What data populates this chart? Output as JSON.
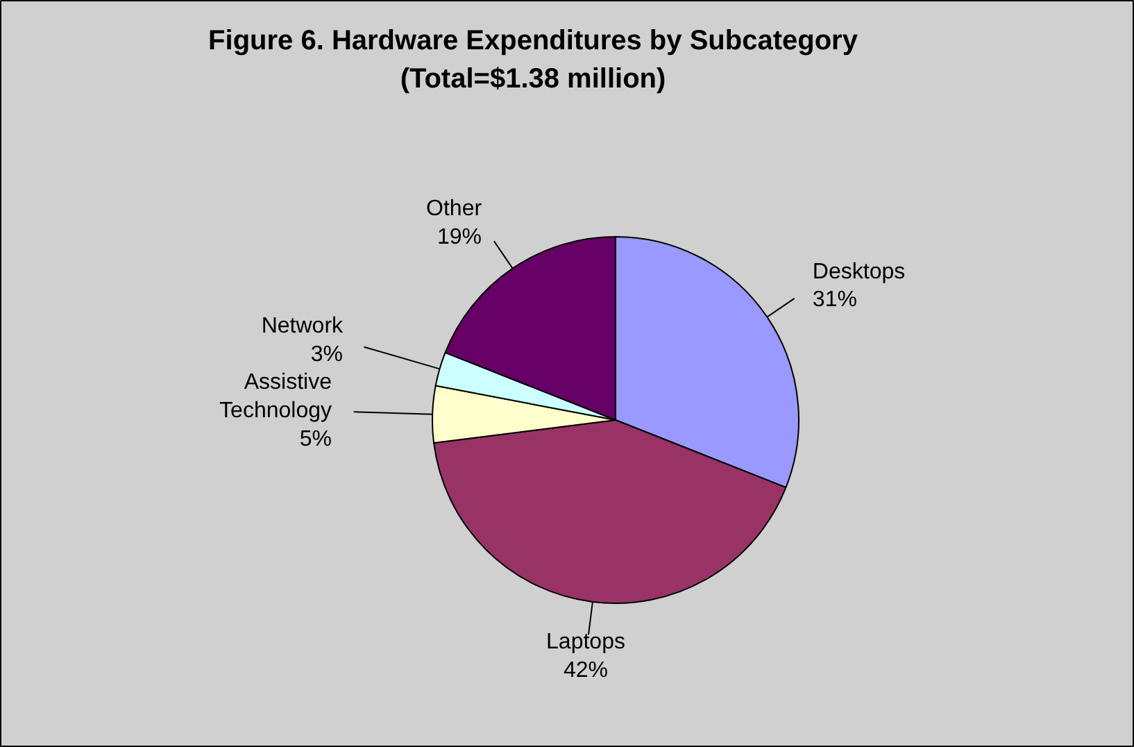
{
  "chart_data": {
    "type": "pie",
    "title": "Figure 6. Hardware Expenditures by Subcategory\n(Total=$1.38 million)",
    "categories": [
      "Desktops",
      "Laptops",
      "Assistive\nTechnology",
      "Network",
      "Other"
    ],
    "values": [
      31,
      42,
      5,
      3,
      19
    ],
    "value_labels": [
      "31%",
      "42%",
      "5%",
      "3%",
      "19%"
    ],
    "colors": [
      "#9999ff",
      "#993366",
      "#ffffcc",
      "#ccffff",
      "#660066"
    ]
  }
}
